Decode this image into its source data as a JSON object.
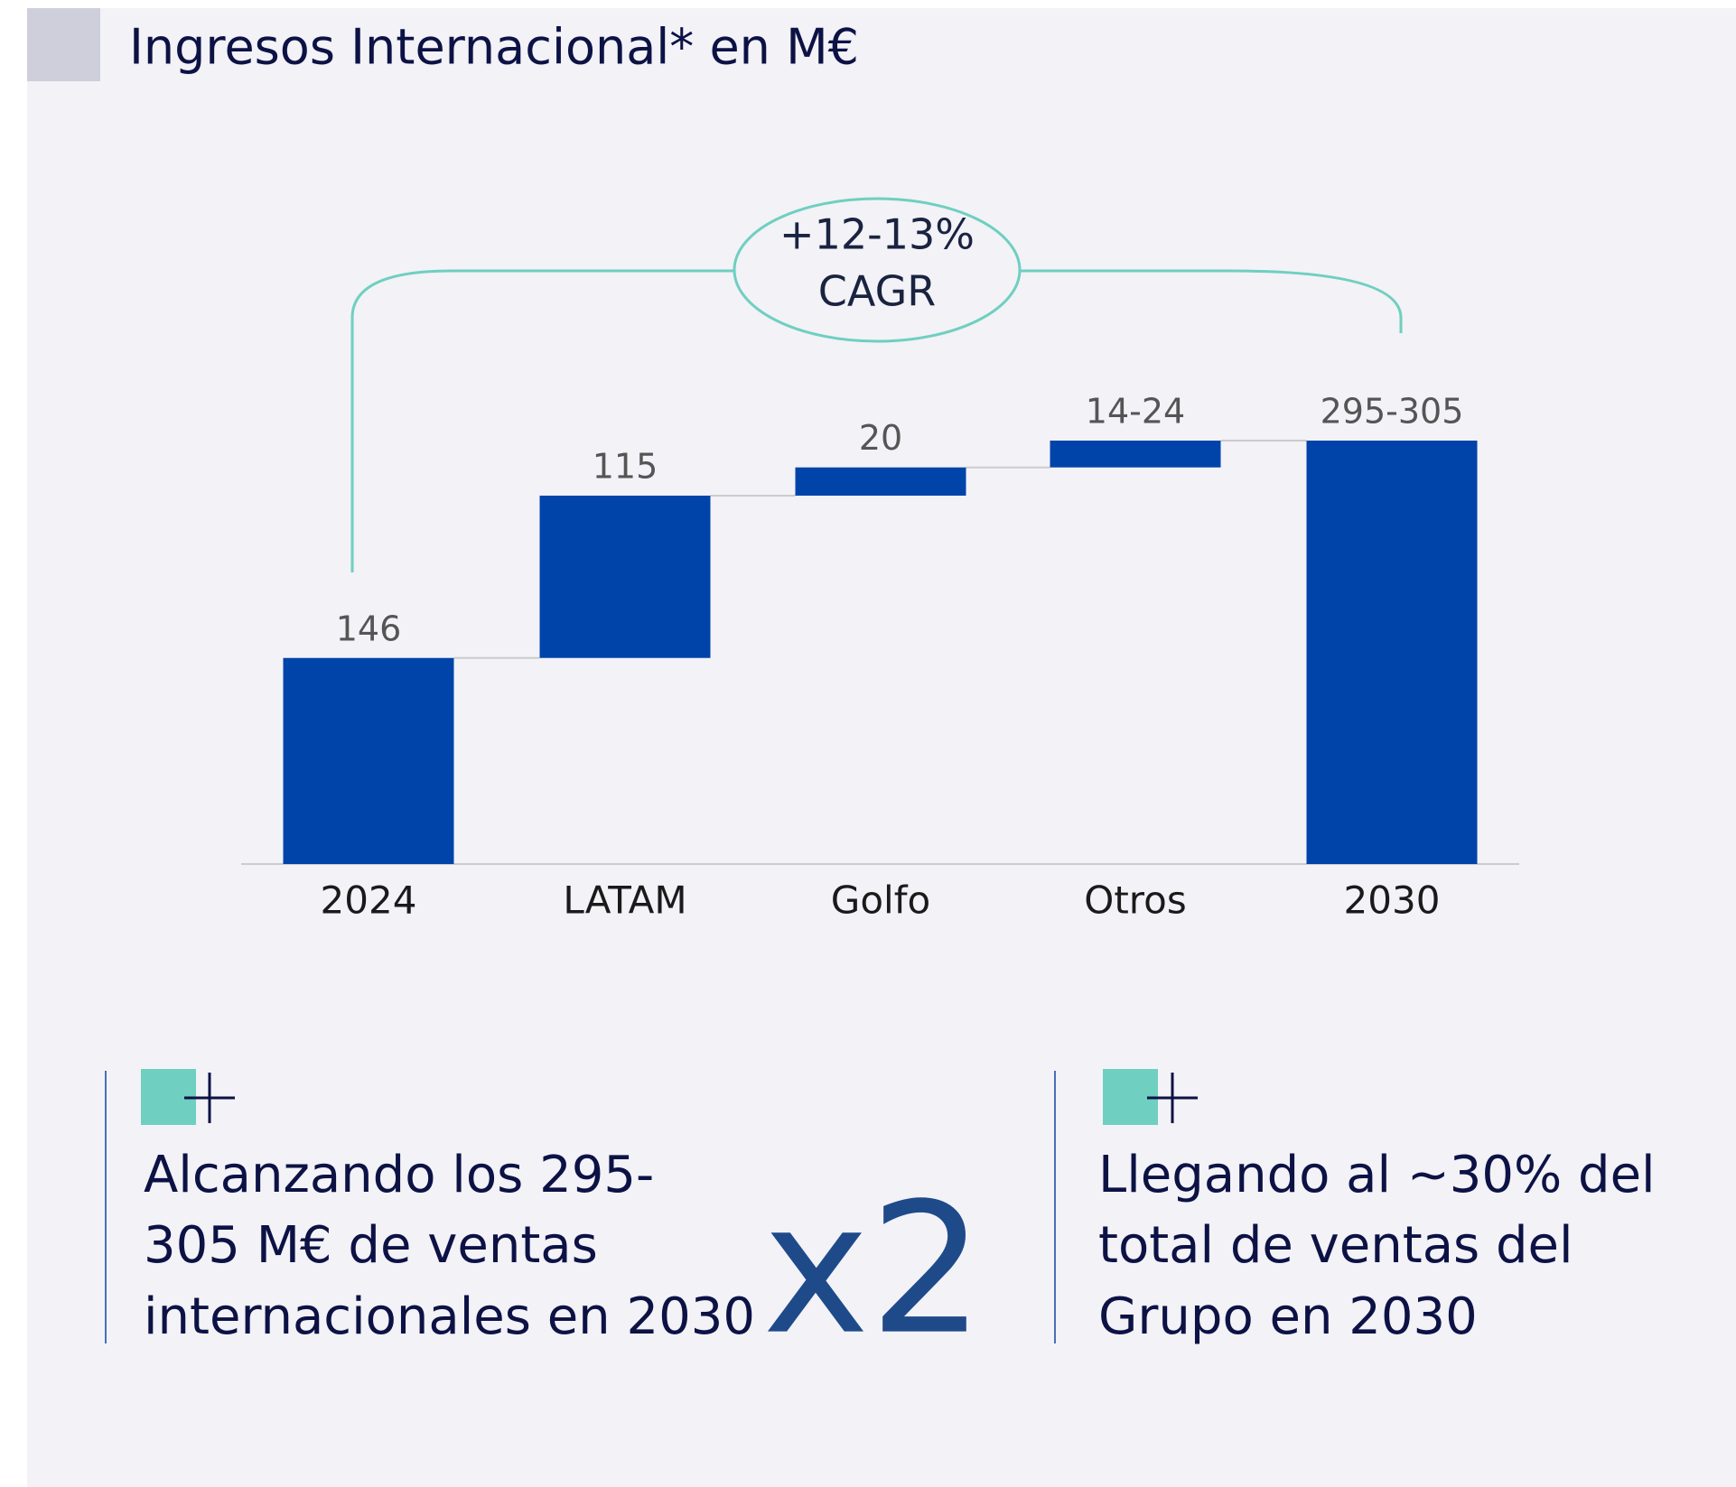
{
  "chart_data": {
    "type": "waterfall",
    "title": "Ingresos Internacional* en M€",
    "categories": [
      "2024",
      "LATAM",
      "Golfo",
      "Otros",
      "2030"
    ],
    "values": [
      146,
      115,
      20,
      19,
      300
    ],
    "value_labels": [
      "146",
      "115",
      "20",
      "14-24",
      "295-305"
    ],
    "color": "#0044aa",
    "annotation": [
      "+12-13%",
      "CAGR"
    ]
  },
  "highlights": [
    {
      "lines": [
        "Alcanzando los 295-",
        "305 M€ de ventas",
        "internacionales en 2030"
      ],
      "badge": "x2"
    },
    {
      "lines": [
        "Llegando al ~30% del",
        "total de ventas del",
        "Grupo en 2030"
      ]
    }
  ]
}
